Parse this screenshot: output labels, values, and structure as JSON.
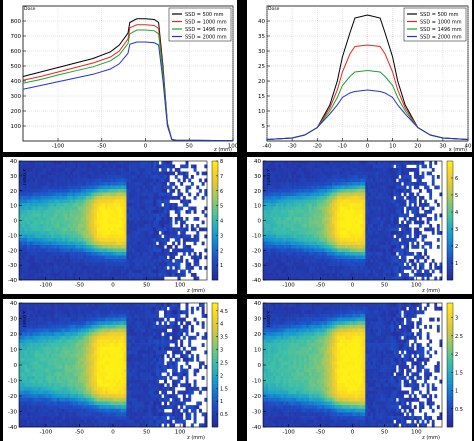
{
  "chart_data": [
    {
      "id": "p-tl",
      "type": "line",
      "ylabel": "Dose",
      "xlabel": "z (mm)",
      "xlim": [
        -140,
        100
      ],
      "ylim": [
        0,
        900
      ],
      "xticks": [
        -100,
        -50,
        0,
        50,
        100
      ],
      "yticks": [
        100,
        200,
        300,
        400,
        500,
        600,
        700,
        800
      ],
      "grid": true,
      "legend": "top-right",
      "x": [
        -140,
        -120,
        -100,
        -80,
        -60,
        -40,
        -30,
        -20,
        -18,
        -10,
        0,
        10,
        15,
        20,
        25,
        30,
        35,
        100
      ],
      "series": [
        {
          "name": "SSD = 500 mm",
          "color": "#000000",
          "values": [
            430,
            460,
            490,
            520,
            550,
            595,
            640,
            720,
            790,
            815,
            815,
            810,
            790,
            500,
            120,
            10,
            5,
            3
          ]
        },
        {
          "name": "SSD = 1000 mm",
          "color": "#e8261c",
          "values": [
            405,
            430,
            460,
            490,
            520,
            560,
            600,
            680,
            755,
            775,
            775,
            770,
            750,
            470,
            115,
            10,
            5,
            3
          ]
        },
        {
          "name": "SSD = 1496 mm",
          "color": "#1fa12f",
          "values": [
            385,
            410,
            440,
            468,
            495,
            535,
            575,
            650,
            715,
            740,
            740,
            735,
            715,
            450,
            110,
            10,
            5,
            3
          ]
        },
        {
          "name": "SSD = 2000 mm",
          "color": "#2233cc",
          "values": [
            345,
            370,
            395,
            420,
            445,
            480,
            515,
            585,
            645,
            660,
            660,
            655,
            640,
            400,
            100,
            10,
            5,
            3
          ]
        }
      ]
    },
    {
      "id": "p-tr",
      "type": "line",
      "ylabel": "Dose",
      "xlabel": "x (mm)",
      "xlim": [
        -40,
        40
      ],
      "ylim": [
        0,
        45
      ],
      "xticks": [
        -40,
        -30,
        -20,
        -10,
        0,
        10,
        20,
        30,
        40
      ],
      "yticks": [
        5,
        10,
        15,
        20,
        25,
        30,
        35,
        40
      ],
      "grid": true,
      "legend": "top-right",
      "x": [
        -40,
        -30,
        -25,
        -20,
        -15,
        -12,
        -10,
        -7,
        -5,
        0,
        5,
        7,
        10,
        12,
        15,
        20,
        25,
        30,
        40
      ],
      "series": [
        {
          "name": "SSD = 500 mm",
          "color": "#000000",
          "values": [
            0.5,
            1,
            2,
            4.5,
            12,
            20,
            28,
            36,
            41,
            42,
            41,
            36,
            28,
            20,
            12,
            4.5,
            2,
            1,
            0.5
          ]
        },
        {
          "name": "SSD = 1000 mm",
          "color": "#e8261c",
          "values": [
            0.5,
            1,
            2,
            4.5,
            11,
            17,
            23,
            29,
            31.5,
            32,
            31.5,
            29,
            23,
            17,
            11,
            4.5,
            2,
            1,
            0.5
          ]
        },
        {
          "name": "SSD = 1496 mm",
          "color": "#1fa12f",
          "values": [
            0.5,
            1,
            2,
            4.5,
            10,
            14.5,
            18.5,
            21.5,
            23,
            23.5,
            23,
            21.5,
            18.5,
            14.5,
            10,
            4.5,
            2,
            1,
            0.5
          ]
        },
        {
          "name": "SSD = 2000 mm",
          "color": "#2233cc",
          "values": [
            0.5,
            1,
            2,
            4.5,
            9,
            12,
            14.5,
            16,
            16.5,
            17,
            16.5,
            16,
            14.5,
            12,
            9,
            4.5,
            2,
            1,
            0.5
          ]
        }
      ]
    },
    {
      "id": "p-ml",
      "type": "heatmap",
      "xlabel": "z (mm)",
      "ylabel": "x (mm)",
      "xlim": [
        -140,
        140
      ],
      "ylim": [
        -40,
        40
      ],
      "xticks": [
        -100,
        -50,
        0,
        50,
        100
      ],
      "yticks": [
        -40,
        -30,
        -20,
        -10,
        0,
        10,
        20,
        30,
        40
      ],
      "zmax": 8,
      "zticks": [
        1,
        2,
        3,
        4,
        5,
        6,
        7,
        8
      ],
      "beam_halfwidth_mm": 13,
      "beam_end_mm": 22
    },
    {
      "id": "p-mr",
      "type": "heatmap",
      "xlabel": "z (mm)",
      "ylabel": "x (mm)",
      "xlim": [
        -140,
        140
      ],
      "ylim": [
        -40,
        40
      ],
      "xticks": [
        -100,
        -50,
        0,
        50,
        100
      ],
      "yticks": [
        -40,
        -30,
        -20,
        -10,
        0,
        10,
        20,
        30,
        40
      ],
      "zmax": 7,
      "zticks": [
        1,
        2,
        3,
        4,
        5,
        6
      ],
      "beam_halfwidth_mm": 14,
      "beam_end_mm": 22
    },
    {
      "id": "p-bl",
      "type": "heatmap",
      "xlabel": "z (mm)",
      "ylabel": "x (mm)",
      "xlim": [
        -140,
        140
      ],
      "ylim": [
        -40,
        40
      ],
      "xticks": [
        -100,
        -50,
        0,
        50,
        100
      ],
      "yticks": [
        -40,
        -30,
        -20,
        -10,
        0,
        10,
        20,
        30,
        40
      ],
      "zmax": 4.8,
      "zticks": [
        0.5,
        1,
        1.5,
        2,
        2.5,
        3,
        3.5,
        4,
        4.5
      ],
      "beam_halfwidth_mm": 18,
      "beam_end_mm": 22
    },
    {
      "id": "p-br",
      "type": "heatmap",
      "xlabel": "z (mm)",
      "ylabel": "x (mm)",
      "xlim": [
        -140,
        140
      ],
      "ylim": [
        -40,
        40
      ],
      "xticks": [
        -100,
        -50,
        0,
        50,
        100
      ],
      "yticks": [
        -40,
        -30,
        -20,
        -10,
        0,
        10,
        20,
        30,
        40
      ],
      "zmax": 3.4,
      "zticks": [
        0.5,
        1,
        1.5,
        2,
        2.5,
        3
      ],
      "beam_halfwidth_mm": 20,
      "beam_end_mm": 22
    }
  ]
}
